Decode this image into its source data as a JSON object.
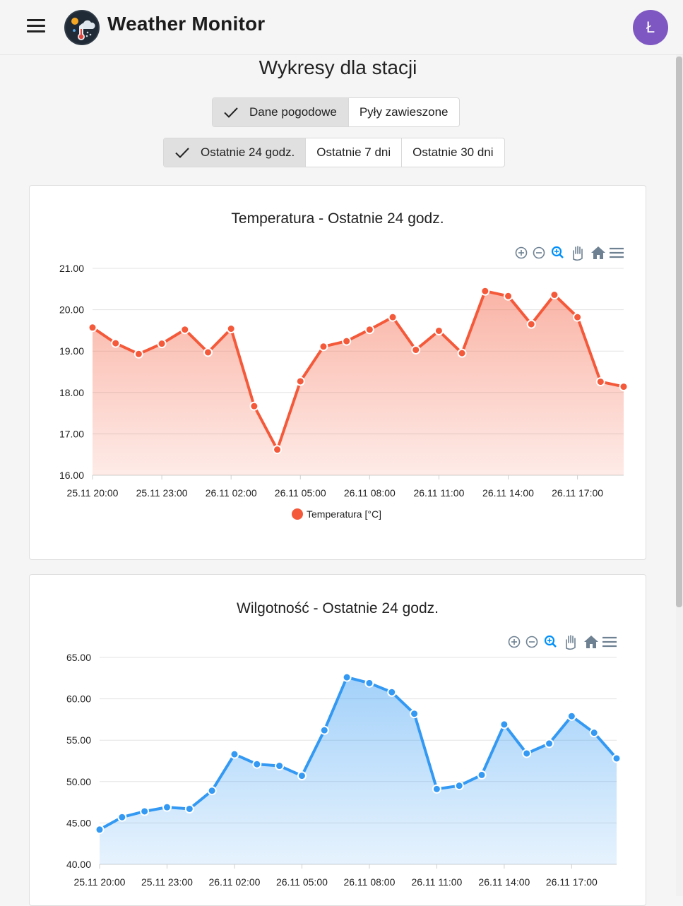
{
  "app": {
    "title": "Weather Monitor",
    "avatar_letter": "Ł",
    "avatar_color": "#7e57c2"
  },
  "page": {
    "heading": "Wykresy dla stacji"
  },
  "data_type_toggle": {
    "options": [
      "Dane pogodowe",
      "Pyły zawieszone"
    ],
    "selected": "Dane pogodowe"
  },
  "range_toggle": {
    "options": [
      "Ostatnie 24 godz.",
      "Ostatnie 7 dni",
      "Ostatnie 30 dni"
    ],
    "selected": "Ostatnie 24 godz."
  },
  "toolbar_icons": [
    "zoom-in-icon",
    "zoom-out-icon",
    "zoom-selection-icon",
    "pan-hand-icon",
    "reset-home-icon",
    "menu-icon"
  ],
  "chart_data": [
    {
      "type": "area",
      "title": "Temperatura - Ostatnie 24 godz.",
      "xlabel": "",
      "ylabel": "",
      "ylim": [
        16,
        21
      ],
      "yticks": [
        "16.00",
        "17.00",
        "18.00",
        "19.00",
        "20.00",
        "21.00"
      ],
      "xticks": [
        "25.11 20:00",
        "25.11 23:00",
        "26.11 02:00",
        "26.11 05:00",
        "26.11 08:00",
        "26.11 11:00",
        "26.11 14:00",
        "26.11 17:00"
      ],
      "color": "#f4593a",
      "legend": "bottom-center",
      "grid": true,
      "series": [
        {
          "name": "Temperatura [°C]",
          "values": [
            19.57,
            19.19,
            18.93,
            19.18,
            19.52,
            18.97,
            19.54,
            17.67,
            16.62,
            18.27,
            19.11,
            19.24,
            19.52,
            19.82,
            19.03,
            19.49,
            18.95,
            20.45,
            20.33,
            19.65,
            20.36,
            19.82,
            18.26,
            18.14
          ]
        }
      ]
    },
    {
      "type": "area",
      "title": "Wilgotność - Ostatnie 24 godz.",
      "xlabel": "",
      "ylabel": "",
      "ylim": [
        40,
        65
      ],
      "yticks": [
        "40.00",
        "45.00",
        "50.00",
        "55.00",
        "60.00",
        "65.00"
      ],
      "xticks": [
        "25.11 20:00",
        "25.11 23:00",
        "26.11 02:00",
        "26.11 05:00",
        "26.11 08:00",
        "26.11 11:00",
        "26.11 14:00",
        "26.11 17:00"
      ],
      "color": "#3399f3",
      "grid": true,
      "series": [
        {
          "name": "",
          "values": [
            44.2,
            45.7,
            46.4,
            46.9,
            46.7,
            48.9,
            53.3,
            52.1,
            51.9,
            50.7,
            56.2,
            62.6,
            61.9,
            60.8,
            58.2,
            49.1,
            49.5,
            50.8,
            56.9,
            53.4,
            54.6,
            57.9,
            55.9,
            52.8
          ]
        }
      ]
    }
  ]
}
